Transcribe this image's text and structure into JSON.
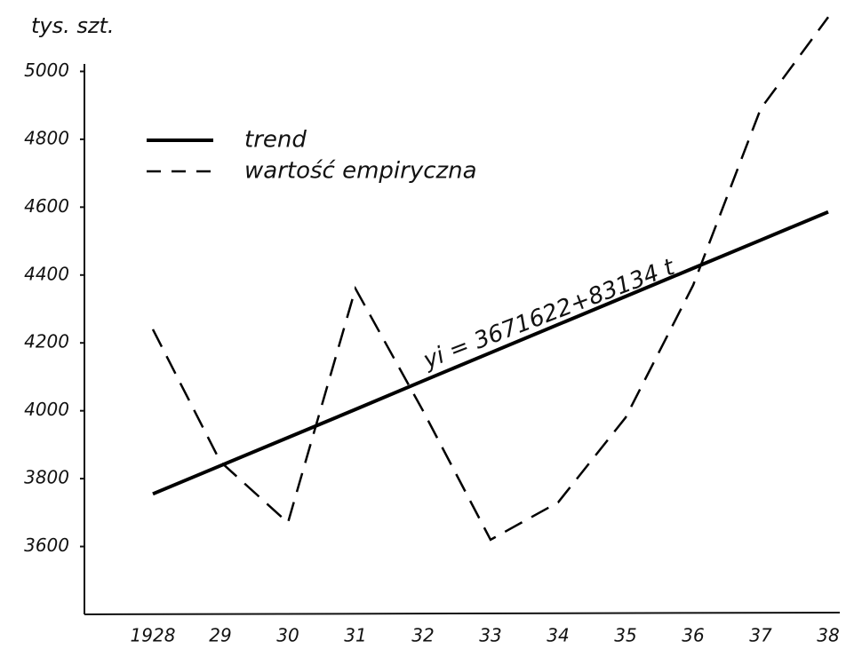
{
  "chart_data": {
    "type": "line",
    "y_label": "tys. szt.",
    "annotation": "yi = 3671622+83134 t",
    "categories": [
      "1928",
      "29",
      "30",
      "31",
      "32",
      "33",
      "34",
      "35",
      "36",
      "37",
      "38"
    ],
    "series": [
      {
        "name": "trend",
        "color": "#000000",
        "line_style": "solid",
        "values": [
          3755,
          3838,
          3921,
          4004,
          4088,
          4171,
          4254,
          4337,
          4420,
          4503,
          4586
        ]
      },
      {
        "name": "wartość empiryczna",
        "color": "#000000",
        "line_style": "dashed",
        "values": [
          4240,
          3850,
          3670,
          4360,
          4000,
          3620,
          3730,
          3980,
          4370,
          4890,
          5160
        ]
      }
    ],
    "ylim": [
      3400,
      5200
    ],
    "yticks": [
      3600,
      3800,
      4000,
      4200,
      4400,
      4600,
      4800,
      5000
    ],
    "grid": false
  }
}
